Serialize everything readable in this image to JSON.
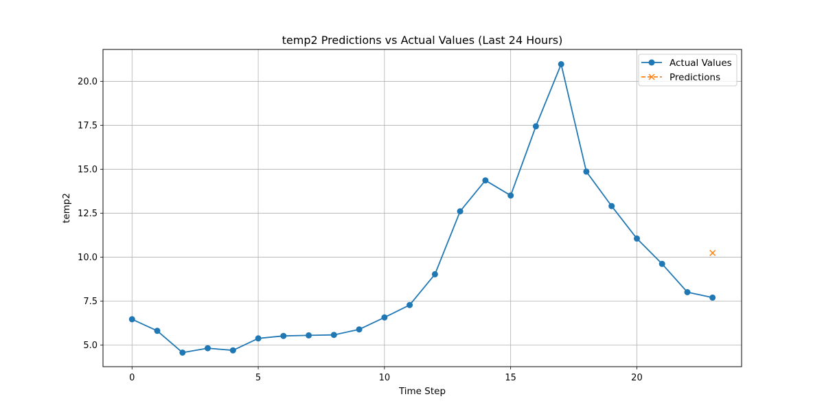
{
  "chart_data": {
    "type": "line",
    "title": "temp2 Predictions vs Actual Values (Last 24 Hours)",
    "xlabel": "Time Step",
    "ylabel": "temp2",
    "xlim": [
      -1.15,
      24.15
    ],
    "ylim": [
      3.77,
      21.82
    ],
    "xticks": [
      0,
      5,
      10,
      15,
      20
    ],
    "xtick_labels": [
      "0",
      "5",
      "10",
      "15",
      "20"
    ],
    "yticks": [
      5.0,
      7.5,
      10.0,
      12.5,
      15.0,
      17.5,
      20.0
    ],
    "ytick_labels": [
      "5.0",
      "7.5",
      "10.0",
      "12.5",
      "15.0",
      "17.5",
      "20.0"
    ],
    "grid": true,
    "legend_position": "top-right",
    "series": [
      {
        "name": "Actual Values",
        "color": "#1f77b4",
        "line_style": "solid",
        "marker": "circle",
        "x": [
          0,
          1,
          2,
          3,
          4,
          5,
          6,
          7,
          8,
          9,
          10,
          11,
          12,
          13,
          14,
          15,
          16,
          17,
          18,
          19,
          20,
          21,
          22,
          23
        ],
        "values": [
          6.47,
          5.81,
          4.57,
          4.82,
          4.7,
          5.38,
          5.52,
          5.55,
          5.58,
          5.89,
          6.57,
          7.28,
          9.03,
          12.61,
          14.37,
          13.51,
          17.45,
          20.98,
          14.87,
          12.91,
          11.06,
          9.62,
          8.01,
          7.7
        ]
      },
      {
        "name": "Predictions",
        "color": "#ff7f0e",
        "line_style": "dashed",
        "marker": "x",
        "x": [
          23
        ],
        "values": [
          10.24
        ]
      }
    ]
  }
}
